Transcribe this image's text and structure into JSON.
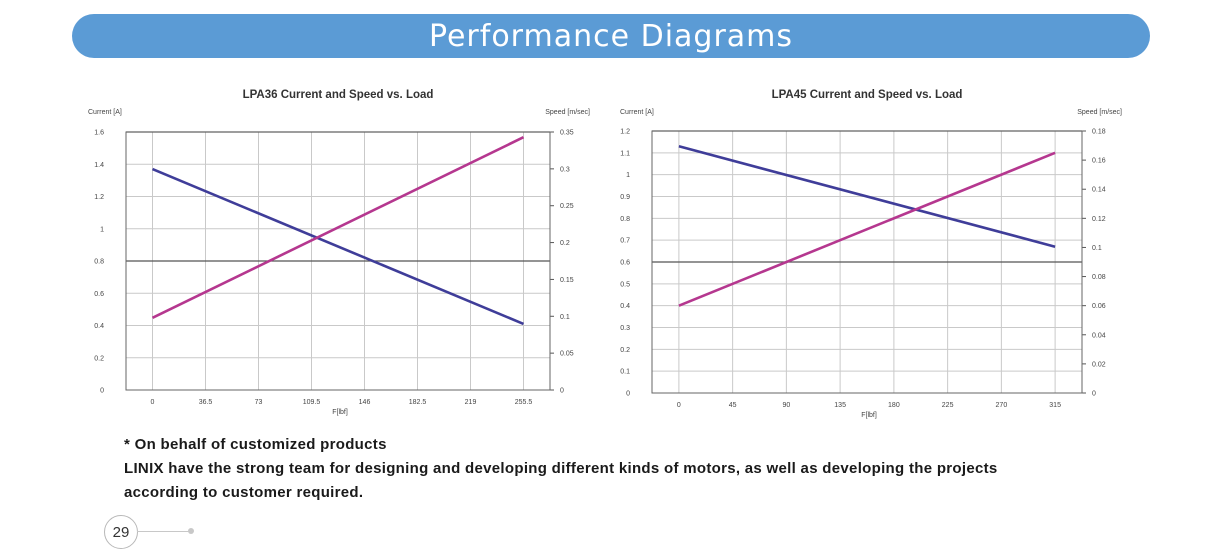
{
  "header": {
    "title": "Performance Diagrams"
  },
  "chart_data": [
    {
      "type": "line",
      "title": "LPA36  Current and Speed vs. Load",
      "xlabel": "F[lbf]",
      "ylabel_left": "Current [A]",
      "ylabel_right": "Speed [m/sec]",
      "x": [
        0,
        36.5,
        73,
        109.5,
        146,
        182.5,
        219,
        255.5
      ],
      "x_tick_labels": [
        "0",
        "36.5",
        "73",
        "109.5",
        "146",
        "182.5",
        "219",
        "255.5"
      ],
      "xlim": [
        -18.25,
        273.75
      ],
      "ylim_left": [
        0,
        1.6
      ],
      "ylim_right": [
        0,
        0.35
      ],
      "y_left_ticks": [
        "0",
        "0.2",
        "0.4",
        "0.6",
        "0.8",
        "1",
        "1.2",
        "1.4",
        "1.6"
      ],
      "y_right_ticks": [
        "0",
        "0.05",
        "0.1",
        "0.15",
        "0.2",
        "0.25",
        "0.3",
        "0.35"
      ],
      "grid": true,
      "series": [
        {
          "axis": "left",
          "color": "#3f3d99",
          "x": [
            0,
            255.5
          ],
          "values": [
            1.37,
            0.41
          ]
        },
        {
          "axis": "right",
          "color": "#b5378f",
          "x": [
            0,
            255.5
          ],
          "values": [
            0.098,
            0.343
          ]
        }
      ]
    },
    {
      "type": "line",
      "title": "LPA45  Current and Speed vs. Load",
      "xlabel": "F[lbf]",
      "ylabel_left": "Current [A]",
      "ylabel_right": "Speed [m/sec]",
      "x": [
        0,
        45,
        90,
        135,
        180,
        225,
        270,
        315
      ],
      "x_tick_labels": [
        "0",
        "45",
        "90",
        "135",
        "180",
        "225",
        "270",
        "315"
      ],
      "xlim": [
        -22.5,
        337.5
      ],
      "ylim_left": [
        0,
        1.2
      ],
      "ylim_right": [
        0,
        0.18
      ],
      "y_left_ticks": [
        "0",
        "0.1",
        "0.2",
        "0.3",
        "0.4",
        "0.5",
        "0.6",
        "0.7",
        "0.8",
        "0.9",
        "1",
        "1.1",
        "1.2"
      ],
      "y_right_ticks": [
        "0",
        "0.02",
        "0.04",
        "0.06",
        "0.08",
        "0.1",
        "0.12",
        "0.14",
        "0.16",
        "0.18"
      ],
      "grid": true,
      "series": [
        {
          "axis": "left",
          "color": "#3f3d99",
          "x": [
            0,
            315
          ],
          "values": [
            1.13,
            0.67
          ]
        },
        {
          "axis": "right",
          "color": "#b5378f",
          "x": [
            0,
            315
          ],
          "values": [
            0.06,
            0.165
          ]
        }
      ]
    }
  ],
  "notes": {
    "line1": "* On behalf of customized products",
    "line2": "LINIX have the strong team for designing and developing different kinds of motors, as well as developing the projects",
    "line3": "according to customer required."
  },
  "footer": {
    "page_number": "29"
  }
}
